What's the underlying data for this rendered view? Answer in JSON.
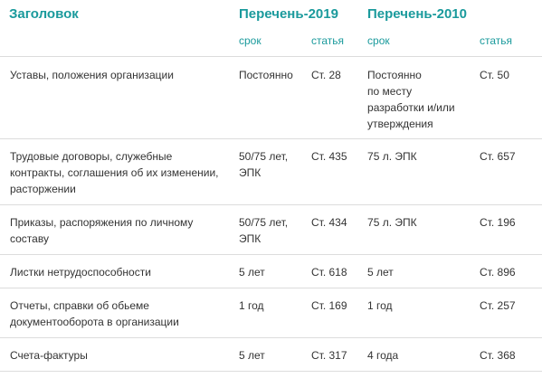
{
  "header": {
    "title": "Заголовок",
    "list_2019": "Перечень-2019",
    "list_2010": "Перечень-2010"
  },
  "subheader": {
    "term_2019": "срок",
    "article_2019": "статья",
    "term_2010": "срок",
    "article_2010": "статья"
  },
  "rows": [
    {
      "title": "Уставы, положения организации",
      "term_2019": "Постоянно",
      "article_2019": "Ст. 28",
      "term_2010": "Постоянно\nпо месту\nразработки и/или\nутверждения",
      "article_2010": "Ст. 50"
    },
    {
      "title": "Трудовые договоры, служебные\nконтракты, соглашения об их изменении,\nрасторжении",
      "term_2019": "50/75 лет,\nЭПК",
      "article_2019": "Ст. 435",
      "term_2010": "75 л. ЭПК",
      "article_2010": "Ст. 657"
    },
    {
      "title": "Приказы, распоряжения по личному\nсоставу",
      "term_2019": "50/75 лет,\nЭПК",
      "article_2019": "Ст. 434",
      "term_2010": "75 л. ЭПК",
      "article_2010": "Ст. 196"
    },
    {
      "title": "Листки нетрудоспособности",
      "term_2019": "5 лет",
      "article_2019": "Ст. 618",
      "term_2010": "5 лет",
      "article_2010": "Ст. 896"
    },
    {
      "title": "Отчеты, справки об обьеме\nдокументооборота в организации",
      "term_2019": "1 год",
      "article_2019": "Ст. 169",
      "term_2010": "1 год",
      "article_2010": "Ст. 257"
    },
    {
      "title": "Счета-фактуры",
      "term_2019": "5 лет",
      "article_2019": "Ст. 317",
      "term_2010": "4 года",
      "article_2010": "Ст. 368"
    }
  ]
}
